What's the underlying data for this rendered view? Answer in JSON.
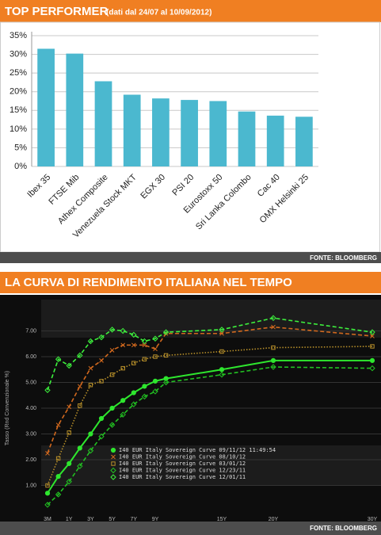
{
  "chart_data": [
    {
      "type": "bar",
      "title": "TOP PERFORMER",
      "subtitle": "(dati dal 24/07 al 10/09/2012)",
      "categories": [
        "Ibex 35",
        "FTSE Mib",
        "Athex Composite",
        "Venezuela Stock MKT",
        "EGX 30",
        "PSI 20",
        "Eurostoxx 50",
        "Sri Lanka Colombo",
        "Cac 40",
        "OMX Helsinki 25"
      ],
      "values": [
        31.5,
        30.2,
        22.8,
        19.2,
        18.2,
        17.8,
        17.5,
        14.7,
        13.6,
        13.3
      ],
      "color": "#4bb8cf",
      "ylim": [
        0,
        35
      ],
      "yticks": [
        {
          "value": 0,
          "label": "0%"
        },
        {
          "value": 5,
          "label": "5%"
        },
        {
          "value": 10,
          "label": "10%"
        },
        {
          "value": 15,
          "label": "15%"
        },
        {
          "value": 20,
          "label": "20%"
        },
        {
          "value": 25,
          "label": "25%"
        },
        {
          "value": 30,
          "label": "30%"
        },
        {
          "value": 35,
          "label": "35%"
        }
      ],
      "grid": true,
      "source": "FONTE: BLOOMBERG"
    },
    {
      "type": "line",
      "title": "LA CURVA DI RENDIMENTO ITALIANA NEL TEMPO",
      "y_label": "Tasso (Rnd Convenzionale %)",
      "categories": [
        "3M",
        null,
        "1Y",
        null,
        "3Y",
        null,
        "5Y",
        null,
        "7Y",
        null,
        "9Y",
        null,
        "15Y",
        "20Y",
        "30Y"
      ],
      "ylim": [
        0,
        8
      ],
      "yticks": [
        {
          "value": 1,
          "label": "1.00"
        },
        {
          "value": 2,
          "label": "2.00"
        },
        {
          "value": 3,
          "label": "3.00"
        },
        {
          "value": 4,
          "label": "4.00"
        },
        {
          "value": 5,
          "label": "5.00"
        },
        {
          "value": 6,
          "label": "6.00"
        },
        {
          "value": 7,
          "label": "7.00"
        }
      ],
      "grid": true,
      "series": [
        {
          "name": "I40 EUR Italy Sovereign Curve 09/11/12 11:49:54",
          "color": "#2ee62e",
          "line_style": "solid",
          "marker": "circle",
          "values": [
            0.7,
            1.35,
            1.85,
            2.45,
            3.0,
            3.6,
            4.0,
            4.3,
            4.6,
            4.85,
            5.05,
            5.15,
            5.5,
            5.85,
            5.85
          ]
        },
        {
          "name": "I40 EUR Italy Sovereign Curve 08/10/12",
          "color": "#d2691e",
          "line_style": "dashed",
          "marker": "x",
          "values": [
            2.25,
            3.35,
            4.05,
            4.85,
            5.55,
            5.85,
            6.25,
            6.45,
            6.45,
            6.45,
            6.3,
            6.9,
            6.9,
            7.15,
            6.8
          ]
        },
        {
          "name": "I40 EUR Italy Sovereign Curve 03/01/12",
          "color": "#b8902a",
          "line_style": "dotted",
          "marker": "square",
          "values": [
            1.0,
            2.05,
            3.05,
            4.1,
            4.9,
            5.05,
            5.3,
            5.55,
            5.75,
            5.9,
            6.0,
            6.05,
            6.2,
            6.35,
            6.4
          ]
        },
        {
          "name": "I40 EUR Italy Sovereign Curve 12/23/11",
          "color": "#22c022",
          "line_style": "dashed",
          "marker": "diamond",
          "values": [
            0.25,
            0.65,
            1.15,
            1.75,
            2.35,
            2.9,
            3.35,
            3.75,
            4.15,
            4.45,
            4.65,
            5.0,
            5.3,
            5.6,
            5.55
          ]
        },
        {
          "name": "I40 EUR Italy Sovereign Curve 12/01/11",
          "color": "#3df03d",
          "line_style": "dashed",
          "marker": "diamond",
          "values": [
            4.7,
            5.9,
            5.65,
            6.05,
            6.6,
            6.75,
            7.05,
            7.0,
            6.85,
            6.6,
            6.7,
            6.95,
            7.05,
            7.5,
            6.95
          ]
        }
      ],
      "source": "FONTE: BLOOMBERG"
    }
  ]
}
